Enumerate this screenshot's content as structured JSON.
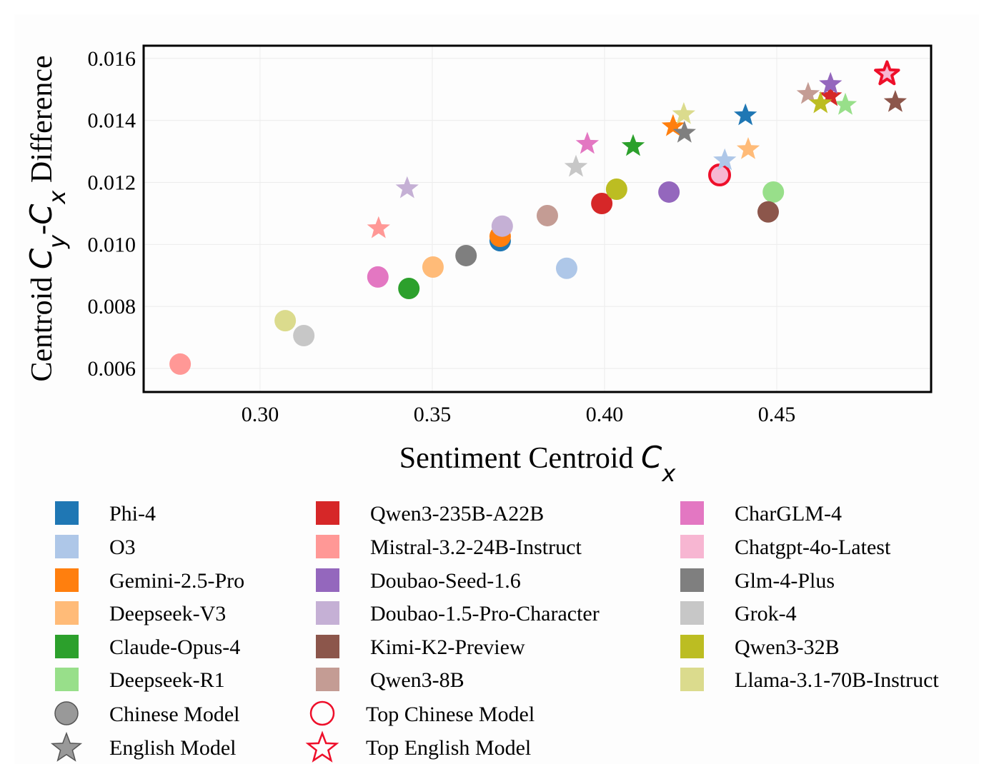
{
  "chart_data": {
    "type": "scatter",
    "xlabel_parts": [
      {
        "t": "Sentiment Centroid "
      },
      {
        "t": "C",
        "i": true
      },
      {
        "t": "x",
        "i": true,
        "sub": true
      }
    ],
    "ylabel_parts": [
      {
        "t": "Centroid "
      },
      {
        "t": "C",
        "i": true
      },
      {
        "t": "y",
        "i": true,
        "sub": true
      },
      {
        "t": "-"
      },
      {
        "t": "C",
        "i": true
      },
      {
        "t": "x",
        "i": true,
        "sub": true
      },
      {
        "t": " Difference"
      }
    ],
    "xlim": [
      0.2662,
      0.4948
    ],
    "ylim": [
      0.00524,
      0.01641
    ],
    "xticks": [
      "0.30",
      "0.35",
      "0.40",
      "0.45"
    ],
    "yticks": [
      "0.006",
      "0.008",
      "0.010",
      "0.012",
      "0.014",
      "0.016"
    ],
    "grid": true,
    "legend_placement": "bottom",
    "series": [
      {
        "name": "Phi-4",
        "color": "#1f77b4",
        "chinese": [
          0.3697,
          0.01012
        ],
        "english": [
          0.4409,
          0.01416
        ]
      },
      {
        "name": "O3",
        "color": "#aec7e8",
        "chinese": [
          0.389,
          0.00923
        ],
        "english": [
          0.4349,
          0.01271
        ]
      },
      {
        "name": "Gemini-2.5-Pro",
        "color": "#ff7f0e",
        "chinese": [
          0.3697,
          0.01026
        ],
        "english": [
          0.4199,
          0.01381
        ]
      },
      {
        "name": "Deepseek-V3",
        "color": "#ffbb78",
        "chinese": [
          0.3502,
          0.00927
        ],
        "english": [
          0.4417,
          0.01307
        ]
      },
      {
        "name": "Claude-Opus-4",
        "color": "#2ca02c",
        "chinese": [
          0.3432,
          0.00858
        ],
        "english": [
          0.4083,
          0.01317
        ]
      },
      {
        "name": "Deepseek-R1",
        "color": "#98df8a",
        "chinese": [
          0.449,
          0.01169
        ],
        "english": [
          0.4699,
          0.0145
        ]
      },
      {
        "name": "Qwen3-235B-A22B",
        "color": "#d62728",
        "chinese": [
          0.3992,
          0.01132
        ],
        "english": [
          0.4656,
          0.01478
        ]
      },
      {
        "name": "Mistral-3.2-24B-Instruct",
        "color": "#ff9896",
        "chinese": [
          0.2768,
          0.00614
        ],
        "english": [
          0.3344,
          0.01052
        ]
      },
      {
        "name": "Doubao-Seed-1.6",
        "color": "#9467bd",
        "chinese": [
          0.4187,
          0.01169
        ],
        "english": [
          0.4656,
          0.01517
        ]
      },
      {
        "name": "Doubao-1.5-Pro-Character",
        "color": "#c5b0d5",
        "chinese": [
          0.3703,
          0.01059
        ],
        "english": [
          0.3427,
          0.01181
        ]
      },
      {
        "name": "Kimi-K2-Preview",
        "color": "#8c564b",
        "chinese": [
          0.4475,
          0.01105
        ],
        "english": [
          0.4844,
          0.01459
        ]
      },
      {
        "name": "Qwen3-8B",
        "color": "#c49c94",
        "chinese": [
          0.3834,
          0.01093
        ],
        "english": [
          0.4591,
          0.01485
        ]
      },
      {
        "name": "CharGLM-4",
        "color": "#e377c2",
        "chinese": [
          0.3342,
          0.00895
        ],
        "english": [
          0.395,
          0.01324
        ]
      },
      {
        "name": "Chatgpt-4o-Latest",
        "color": "#f7b6d2",
        "chinese": [
          0.4334,
          0.01224
        ],
        "english": [
          0.482,
          0.0155
        ],
        "top_chinese": true,
        "top_english": true
      },
      {
        "name": "Glm-4-Plus",
        "color": "#7f7f7f",
        "chinese": [
          0.3598,
          0.00964
        ],
        "english": [
          0.4232,
          0.0136
        ]
      },
      {
        "name": "Grok-4",
        "color": "#c7c7c7",
        "chinese": [
          0.3127,
          0.00706
        ],
        "english": [
          0.3917,
          0.0125
        ]
      },
      {
        "name": "Qwen3-32B",
        "color": "#bcbd22",
        "chinese": [
          0.4035,
          0.01178
        ],
        "english": [
          0.4627,
          0.01455
        ]
      },
      {
        "name": "Llama-3.1-70B-Instruct",
        "color": "#dbdb8d",
        "chinese": [
          0.3073,
          0.00754
        ],
        "english": [
          0.423,
          0.0142
        ]
      }
    ],
    "marker_legend": [
      {
        "label": "Chinese Model",
        "marker": "circle",
        "color": "#999999"
      },
      {
        "label": "English Model",
        "marker": "star",
        "color": "#999999"
      },
      {
        "label": "Top Chinese Model",
        "marker": "circle-outline",
        "color": "#ee0f2a"
      },
      {
        "label": "Top English Model",
        "marker": "star-outline",
        "color": "#ee0f2a"
      }
    ],
    "highlight_color": "#ee0f2a"
  }
}
